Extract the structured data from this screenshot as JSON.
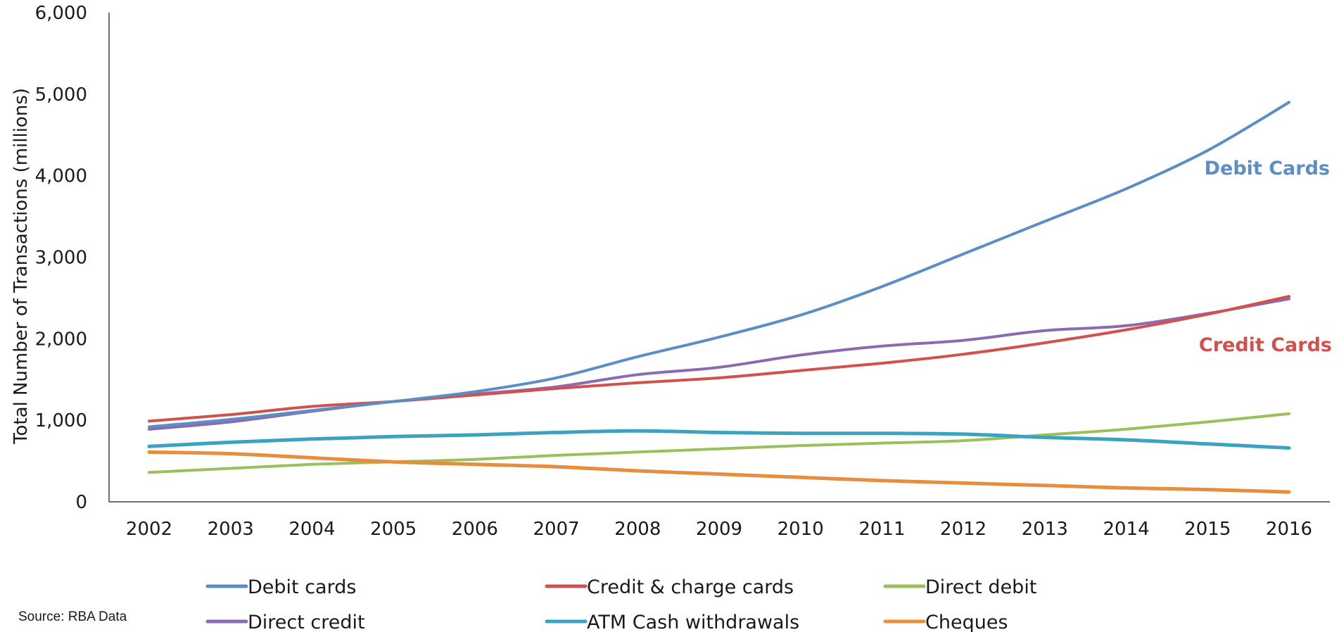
{
  "chart_data": {
    "type": "line",
    "ylabel": "Total Number of Transactions (millions)",
    "xlabel": "",
    "ylim": [
      0,
      6000
    ],
    "yticks": [
      0,
      1000,
      2000,
      3000,
      4000,
      5000,
      6000
    ],
    "ytick_labels": [
      "0",
      "1,000",
      "2,000",
      "3,000",
      "4,000",
      "5,000",
      "6,000"
    ],
    "categories": [
      "2002",
      "2003",
      "2004",
      "2005",
      "2006",
      "2007",
      "2008",
      "2009",
      "2010",
      "2011",
      "2012",
      "2013",
      "2014",
      "2015",
      "2016"
    ],
    "grid": false,
    "legend_position": "bottom",
    "series": [
      {
        "name": "Debit cards",
        "color": "#5b8ec5",
        "values": [
          920,
          1010,
          1120,
          1230,
          1350,
          1520,
          1780,
          2020,
          2290,
          2640,
          3040,
          3440,
          3840,
          4310,
          4900
        ]
      },
      {
        "name": "Credit & charge cards",
        "color": "#d0524f",
        "values": [
          990,
          1070,
          1170,
          1230,
          1310,
          1390,
          1460,
          1520,
          1610,
          1700,
          1810,
          1950,
          2110,
          2300,
          2520
        ]
      },
      {
        "name": "Direct debit",
        "color": "#9bbf5a",
        "values": [
          360,
          410,
          460,
          490,
          520,
          570,
          610,
          650,
          690,
          720,
          750,
          820,
          890,
          980,
          1080
        ]
      },
      {
        "name": "Direct credit",
        "color": "#8a6bb0",
        "values": [
          890,
          980,
          1110,
          1230,
          1320,
          1410,
          1560,
          1650,
          1800,
          1910,
          1980,
          2100,
          2160,
          2310,
          2490
        ]
      },
      {
        "name": "ATM Cash withdrawals",
        "color": "#3ba3bf",
        "values": [
          680,
          730,
          770,
          800,
          820,
          850,
          870,
          850,
          840,
          840,
          830,
          790,
          760,
          710,
          660
        ]
      },
      {
        "name": "Cheques",
        "color": "#e78d3e",
        "values": [
          610,
          590,
          540,
          490,
          460,
          430,
          380,
          340,
          300,
          260,
          230,
          200,
          170,
          150,
          120
        ]
      }
    ],
    "annotations": [
      {
        "text": "Debit Cards",
        "color": "#5b8ec5"
      },
      {
        "text": "Credit Cards",
        "color": "#d0524f"
      }
    ]
  },
  "source": "Source: RBA Data"
}
